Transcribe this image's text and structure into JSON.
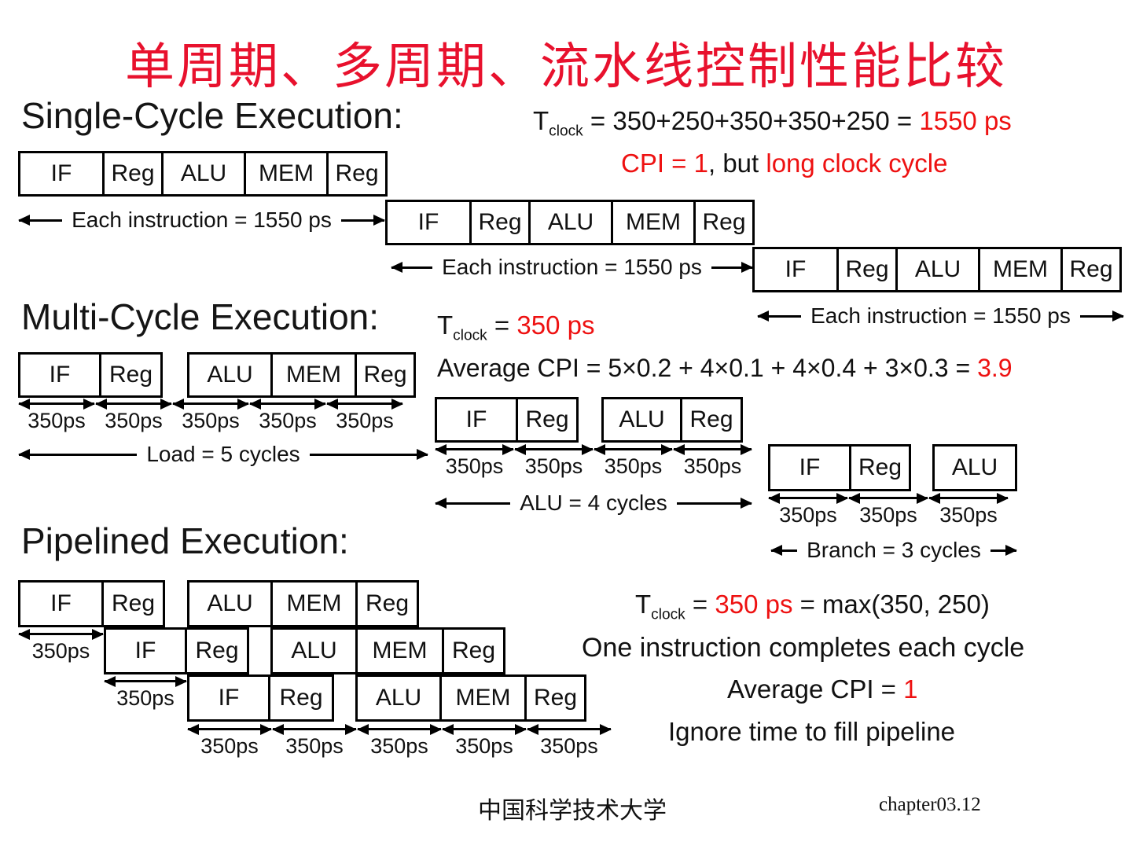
{
  "title": "单周期、多周期、流水线控制性能比较",
  "colors": {
    "title_red": "#e8112d",
    "accent_red": "#ee1111",
    "text": "#111111",
    "background": "#ffffff"
  },
  "labels": {
    "ps350": "350ps",
    "each_instruction": "Each instruction = 1550 ps",
    "load_cycles": "Load = 5 cycles",
    "alu_cycles": "ALU = 4 cycles",
    "branch_cycles": "Branch = 3 cycles"
  },
  "rows": {
    "sc1": [
      "IF",
      "Reg",
      "ALU",
      "MEM",
      "Reg"
    ],
    "sc2": [
      "IF",
      "Reg",
      "ALU",
      "MEM",
      "Reg"
    ],
    "sc3": [
      "IF",
      "Reg",
      "ALU",
      "MEM",
      "Reg"
    ],
    "mc_load": [
      "IF",
      "Reg",
      "ALU",
      "MEM",
      "Reg"
    ],
    "mc_alu": [
      "IF",
      "Reg",
      "ALU",
      "Reg"
    ],
    "mc_branch": [
      "IF",
      "Reg",
      "ALU"
    ],
    "pl1": [
      "IF",
      "Reg",
      "ALU",
      "MEM",
      "Reg"
    ],
    "pl2": [
      "IF",
      "Reg",
      "ALU",
      "MEM",
      "Reg"
    ],
    "pl3": [
      "IF",
      "Reg",
      "ALU",
      "MEM",
      "Reg"
    ]
  },
  "single_cycle": {
    "heading": "Single-Cycle Execution:",
    "tclock": {
      "t": "T",
      "sub": "clock",
      "mid": " = 350+250+350+350+250 = ",
      "result": "1550 ps"
    },
    "cpi": {
      "cpi": "CPI = 1",
      "mid": ", but ",
      "tail": "long clock cycle"
    }
  },
  "multi_cycle": {
    "heading": "Multi-Cycle Execution:",
    "tclock": {
      "t": "T",
      "sub": "clock",
      "mid": " = ",
      "result": "350 ps"
    },
    "avg": {
      "lead": "Average CPI = 5×0.2 + 4×0.1 + 4×0.4 + 3×0.3 = ",
      "result": "3.9"
    }
  },
  "pipelined": {
    "heading": "Pipelined Execution:",
    "tclock": {
      "t": "T",
      "sub": "clock",
      "mid": " = ",
      "result": "350 ps",
      "tail": " = max(350, 250)"
    },
    "line2": "One instruction completes each cycle",
    "line3": {
      "lead": "Average CPI = ",
      "result": "1"
    },
    "line4": "Ignore time to fill pipeline"
  },
  "footer": {
    "organization": "中国科学技术大学",
    "page": "chapter03.12"
  }
}
